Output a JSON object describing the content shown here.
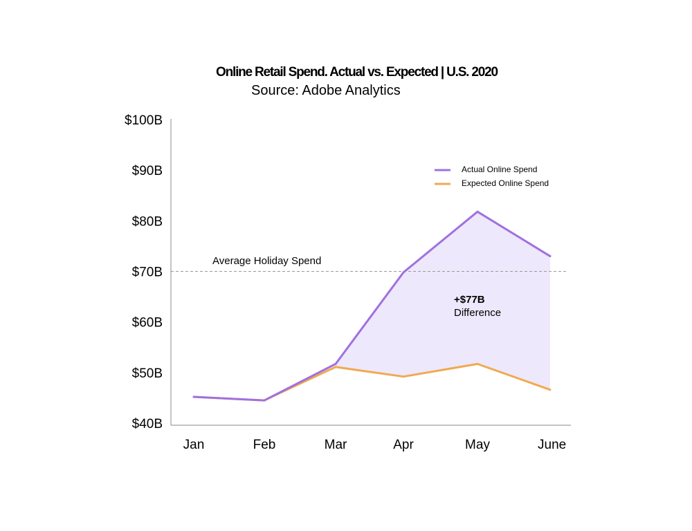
{
  "chart_data": {
    "type": "line",
    "title": "Online Retail Spend. Actual vs. Expected | U.S. 2020",
    "subtitle": "Source: Adobe Analytics",
    "xlabel": "",
    "ylabel": "",
    "categories": [
      "Jan",
      "Feb",
      "Mar",
      "Apr",
      "May",
      "June"
    ],
    "yticks": [
      "$40B",
      "$50B",
      "$60B",
      "$70B",
      "$80B",
      "$90B",
      "$100B"
    ],
    "ylim": [
      40,
      100
    ],
    "grid": false,
    "legend_position": "top-right",
    "series": [
      {
        "name": "Actual Online Spend",
        "color": "#a070e0",
        "values": [
          45.2,
          44.5,
          51.7,
          69.8,
          81.8,
          73.0
        ]
      },
      {
        "name": "Expected Online Spend",
        "color": "#f0aa50",
        "values": [
          45.2,
          44.5,
          51.1,
          49.2,
          51.7,
          46.6
        ]
      }
    ],
    "fill_color": "#ede8fb",
    "reference_line": {
      "label": "Average Holiday Spend",
      "value": 70
    },
    "annotation": {
      "value": "+$77B",
      "label": "Difference"
    }
  }
}
